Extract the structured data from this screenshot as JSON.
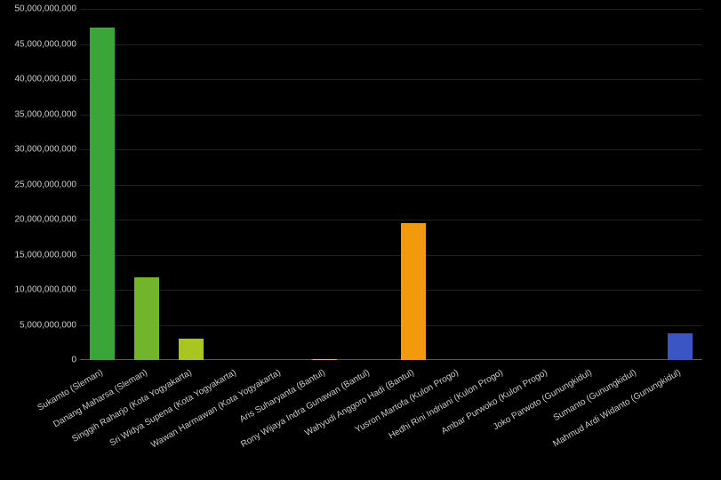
{
  "chart": {
    "type": "bar",
    "background_color": "#000000",
    "text_color": "#cccccc",
    "grid_color": "rgba(255,255,255,0.12)",
    "label_fontsize": 10,
    "ylim": [
      0,
      50000000000
    ],
    "ytick_step": 5000000000,
    "y_ticks": [
      {
        "value": 0,
        "label": "0"
      },
      {
        "value": 5000000000,
        "label": "5,000,000,000"
      },
      {
        "value": 10000000000,
        "label": "10,000,000,000"
      },
      {
        "value": 15000000000,
        "label": "15,000,000,000"
      },
      {
        "value": 20000000000,
        "label": "20,000,000,000"
      },
      {
        "value": 25000000000,
        "label": "25,000,000,000"
      },
      {
        "value": 30000000000,
        "label": "30,000,000,000"
      },
      {
        "value": 35000000000,
        "label": "35,000,000,000"
      },
      {
        "value": 40000000000,
        "label": "40,000,000,000"
      },
      {
        "value": 45000000000,
        "label": "45,000,000,000"
      },
      {
        "value": 50000000000,
        "label": "50,000,000,000"
      }
    ],
    "bar_width_ratio": 0.55,
    "categories": [
      "Sukamto (Sleman)",
      "Danang Maharsa (Sleman)",
      "Singgih Raharjo (Kota Yogyakarta)",
      "Sri Widya Supena (Kota Yogyakarta)",
      "Wawan Harmawan (Kota Yogyakarta)",
      "Aris Suharyanta (Bantul)",
      "Rony Wijaya Indra Gunawan (Bantul)",
      "Wahyudi Anggoro Hadi (Bantul)",
      "Yusron Martofa (Kulon Progo)",
      "Hedhi Rini Indriani (Kulon Progo)",
      "Ambar Purwoko (Kulon Progo)",
      "Joko Parwoto (Gunungkidul)",
      "Sumanto (Gunungkidul)",
      "Mahmud Ardi Widanto (Gunungkidul)"
    ],
    "values": [
      47300000000,
      11800000000,
      3100000000,
      0,
      0,
      150000000,
      0,
      19500000000,
      0,
      0,
      0,
      0,
      0,
      3800000000
    ],
    "bar_colors": [
      "#3aa539",
      "#72b52c",
      "#a9c520",
      "#d9cf16",
      "#f2c80f",
      "#f2b90e",
      "#f2a90d",
      "#f29a0c",
      "#e6550d",
      "#d6360c",
      "#c3260b",
      "#8a1aa8",
      "#5c2fb7",
      "#3b55c4"
    ]
  }
}
